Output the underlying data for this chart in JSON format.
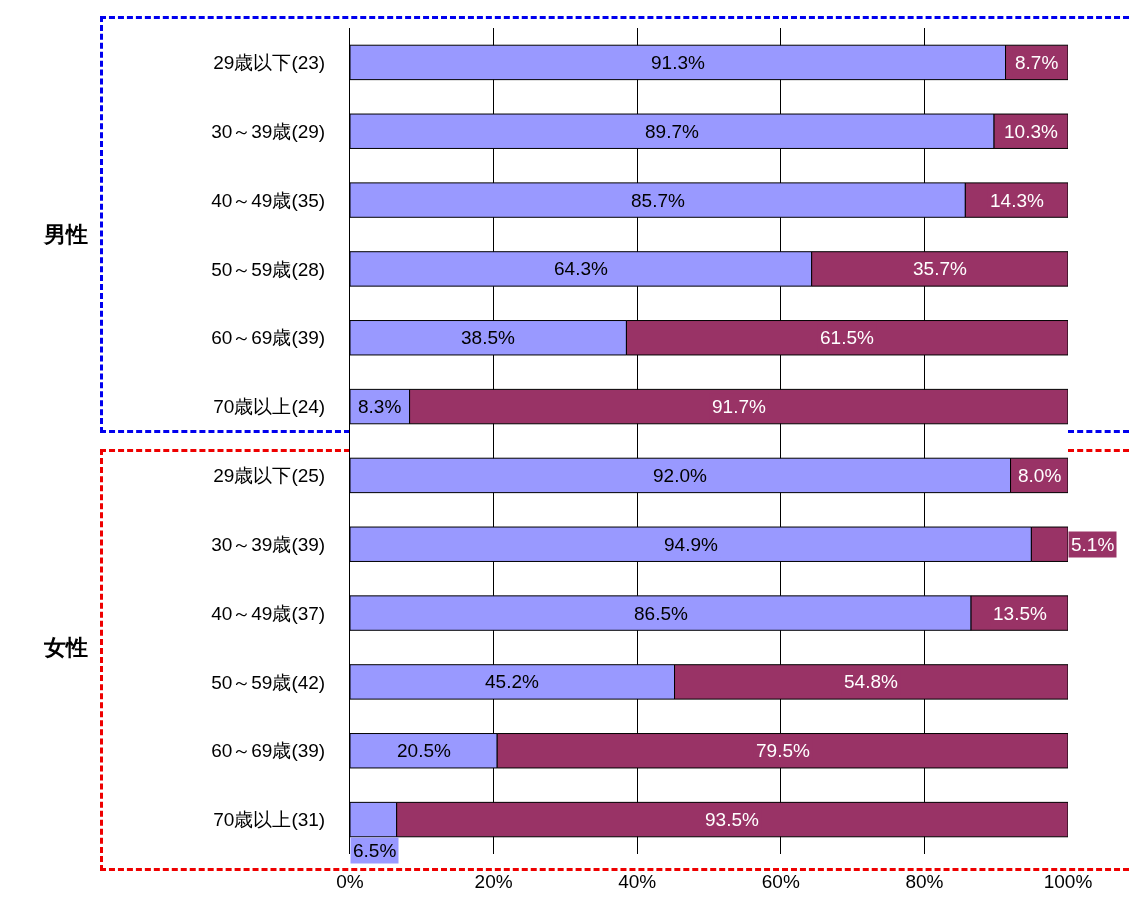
{
  "chart_data": {
    "type": "bar",
    "orientation": "horizontal",
    "stacked": true,
    "categories": [
      "29歳以下(23)",
      "30～39歳(29)",
      "40～49歳(35)",
      "50～59歳(28)",
      "60～69歳(39)",
      "70歳以上(24)",
      "29歳以下(25)",
      "30～39歳(39)",
      "40～49歳(37)",
      "50～59歳(42)",
      "60～69歳(39)",
      "70歳以上(31)"
    ],
    "series": [
      {
        "color": "#9999ff",
        "values": [
          91.3,
          89.7,
          85.7,
          64.3,
          38.5,
          8.3,
          92.0,
          94.9,
          86.5,
          45.2,
          20.5,
          6.5
        ],
        "value_labels": [
          "91.3%",
          "89.7%",
          "85.7%",
          "64.3%",
          "38.5%",
          "8.3%",
          "92.0%",
          "94.9%",
          "86.5%",
          "45.2%",
          "20.5%",
          "6.5%"
        ]
      },
      {
        "color": "#993366",
        "values": [
          8.7,
          10.3,
          14.3,
          35.7,
          61.5,
          91.7,
          8.0,
          5.1,
          13.5,
          54.8,
          79.5,
          93.5
        ],
        "value_labels": [
          "8.7%",
          "10.3%",
          "14.3%",
          "35.7%",
          "61.5%",
          "91.7%",
          "8.0%",
          "5.1%",
          "13.5%",
          "54.8%",
          "79.5%",
          "93.5%"
        ]
      }
    ],
    "xlim": [
      0,
      100
    ],
    "xticks": [
      {
        "value": 0,
        "label": "0%"
      },
      {
        "value": 20,
        "label": "20%"
      },
      {
        "value": 40,
        "label": "40%"
      },
      {
        "value": 60,
        "label": "60%"
      },
      {
        "value": 80,
        "label": "80%"
      },
      {
        "value": 100,
        "label": "100%"
      }
    ],
    "grid": "x",
    "annotations": [
      "男性",
      "女性"
    ]
  }
}
